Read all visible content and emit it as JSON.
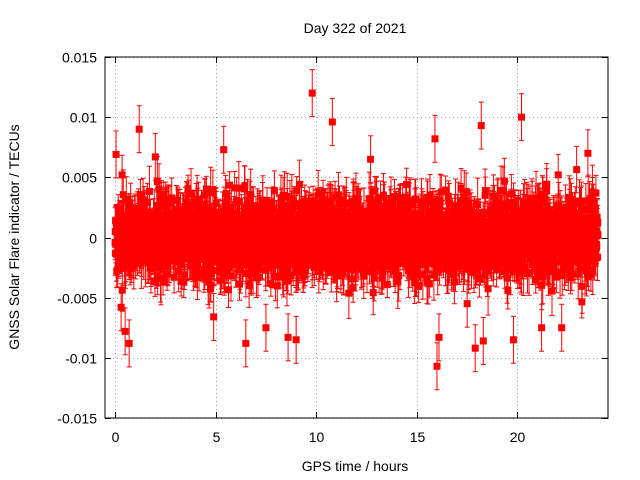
{
  "chart_data": {
    "type": "scatter",
    "title": "Day 322 of 2021",
    "xlabel": "GPS time / hours",
    "ylabel": "GNSS Solar Flare indicator / TECUs",
    "xlim": [
      -0.5,
      24.5
    ],
    "ylim": [
      -0.015,
      0.015
    ],
    "xticks": [
      0,
      5,
      10,
      15,
      20
    ],
    "xtick_labels": [
      "0",
      "5",
      "10",
      "15",
      "20"
    ],
    "yticks": [
      -0.015,
      -0.01,
      -0.005,
      0,
      0.005,
      0.01,
      0.015
    ],
    "ytick_labels": [
      "-0.015",
      "-0.01",
      "-0.005",
      "0",
      "0.005",
      "0.01",
      "0.015"
    ],
    "grid": true,
    "legend": "none",
    "error_bars": true,
    "marker": "square",
    "color": "#ff0000",
    "series": [
      {
        "x_start": 0.0,
        "x_end": 24.0,
        "n_points": 2880,
        "typical_spread": 0.0035,
        "typical_error": 0.0015,
        "notable_points": [
          {
            "x": 0.05,
            "y": 0.0069
          },
          {
            "x": 0.3,
            "y": -0.0058
          },
          {
            "x": 0.5,
            "y": -0.0078
          },
          {
            "x": 0.7,
            "y": -0.0088
          },
          {
            "x": 1.2,
            "y": 0.009
          },
          {
            "x": 2.0,
            "y": 0.0067
          },
          {
            "x": 4.9,
            "y": -0.0066
          },
          {
            "x": 5.4,
            "y": 0.0073
          },
          {
            "x": 6.5,
            "y": -0.0088
          },
          {
            "x": 7.5,
            "y": -0.0075
          },
          {
            "x": 8.6,
            "y": -0.0083
          },
          {
            "x": 9.0,
            "y": -0.0085
          },
          {
            "x": 9.8,
            "y": 0.012
          },
          {
            "x": 10.8,
            "y": 0.0096
          },
          {
            "x": 12.7,
            "y": 0.0065
          },
          {
            "x": 15.9,
            "y": 0.0082
          },
          {
            "x": 16.1,
            "y": -0.0083
          },
          {
            "x": 16.0,
            "y": -0.0107
          },
          {
            "x": 17.5,
            "y": -0.0055
          },
          {
            "x": 17.9,
            "y": -0.0092
          },
          {
            "x": 18.2,
            "y": 0.0093
          },
          {
            "x": 18.3,
            "y": -0.0086
          },
          {
            "x": 20.2,
            "y": 0.01
          },
          {
            "x": 19.8,
            "y": -0.0085
          },
          {
            "x": 21.2,
            "y": -0.0075
          },
          {
            "x": 22.2,
            "y": -0.0075
          },
          {
            "x": 23.5,
            "y": 0.007
          }
        ]
      }
    ]
  }
}
